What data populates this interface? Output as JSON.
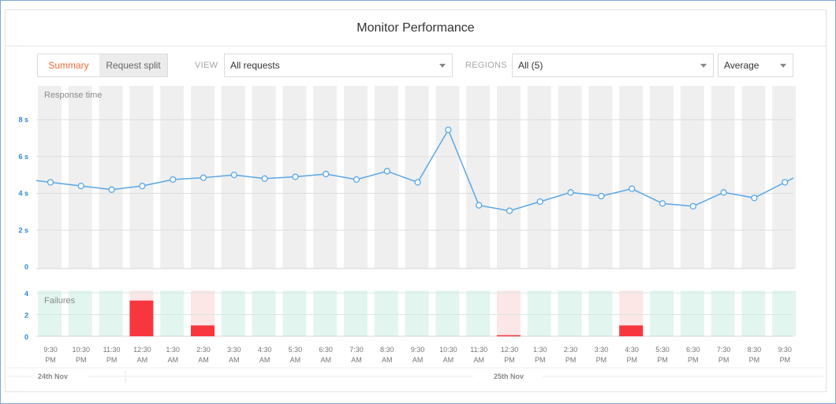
{
  "card": {
    "title": "Monitor Performance"
  },
  "controls": {
    "tabs": [
      {
        "label": "Summary",
        "active": true
      },
      {
        "label": "Request split",
        "active": false
      }
    ],
    "view_label": "VIEW",
    "view_value": "All requests",
    "regions_label": "REGIONS",
    "regions_value": "All (5)",
    "agg_value": "Average"
  },
  "colors": {
    "line": "#5aa7e6",
    "failure_bar": "#f8363e",
    "slot_gray": "#efefef",
    "slot_green": "#e2f5ee",
    "slot_red": "#fde6e6",
    "axis_tick": "#2f86d6"
  },
  "chart_data": [
    {
      "type": "line",
      "title": "Response time",
      "x": [
        "9:30 PM",
        "10:30 PM",
        "11:30 PM",
        "12:30 AM",
        "1:30 AM",
        "2:30 AM",
        "3:30 AM",
        "4:30 AM",
        "5:30 AM",
        "6:30 AM",
        "7:30 AM",
        "8:30 AM",
        "9:30 AM",
        "10:30 AM",
        "11:30 AM",
        "12:30 PM",
        "1:30 PM",
        "2:30 PM",
        "3:30 PM",
        "4:30 PM",
        "5:30 PM",
        "6:30 PM",
        "7:30 PM",
        "8:30 PM",
        "9:30 PM"
      ],
      "series": [
        {
          "values": [
            4.6,
            4.4,
            4.2,
            4.4,
            4.75,
            4.85,
            5.0,
            4.8,
            4.9,
            5.05,
            4.75,
            5.2,
            4.6,
            7.45,
            3.35,
            3.05,
            3.55,
            4.05,
            3.85,
            4.25,
            3.45,
            3.3,
            4.05,
            3.75,
            4.6
          ]
        }
      ],
      "ylim": [
        0,
        9
      ],
      "y_ticks": [
        {
          "value": 0,
          "label": "0"
        },
        {
          "value": 2,
          "label": "2 s"
        },
        {
          "value": 4,
          "label": "4 s"
        },
        {
          "value": 6,
          "label": "6 s"
        },
        {
          "value": 8,
          "label": "8 s"
        }
      ],
      "grid": true
    },
    {
      "type": "bar",
      "title": "Failures",
      "categories": [
        "9:30 PM",
        "10:30 PM",
        "11:30 PM",
        "12:30 AM",
        "1:30 AM",
        "2:30 AM",
        "3:30 AM",
        "4:30 AM",
        "5:30 AM",
        "6:30 AM",
        "7:30 AM",
        "8:30 AM",
        "9:30 AM",
        "10:30 AM",
        "11:30 AM",
        "12:30 PM",
        "1:30 PM",
        "2:30 PM",
        "3:30 PM",
        "4:30 PM",
        "5:30 PM",
        "6:30 PM",
        "7:30 PM",
        "8:30 PM",
        "9:30 PM"
      ],
      "values": [
        0,
        0,
        0,
        3.3,
        0,
        1,
        0,
        0,
        0,
        0,
        0,
        0,
        0,
        0,
        0,
        0.1,
        0,
        0,
        0,
        1,
        0,
        0,
        0,
        0,
        0
      ],
      "ylim": [
        0,
        4
      ],
      "y_ticks": [
        {
          "value": 0,
          "label": "0"
        },
        {
          "value": 2,
          "label": "2"
        },
        {
          "value": 4,
          "label": "4"
        }
      ]
    }
  ],
  "dates": [
    "24th Nov",
    "25th Nov"
  ]
}
